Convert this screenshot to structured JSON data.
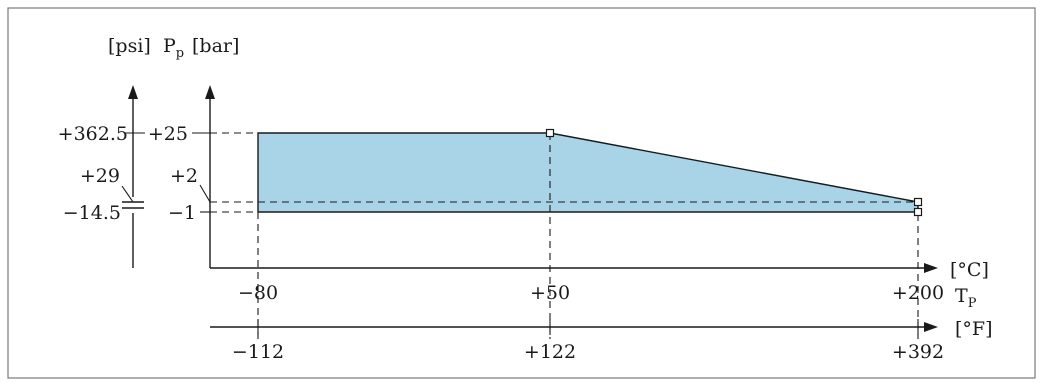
{
  "chart_data": {
    "type": "area",
    "title": "",
    "y_axes": {
      "bar": {
        "symbol": "P",
        "subscript": "p",
        "unit": "[bar]",
        "ticks": [
          "+25",
          "+2",
          "−1"
        ],
        "tick_values": [
          25,
          2,
          -1
        ]
      },
      "psi": {
        "unit": "[psi]",
        "ticks": [
          "+362.5",
          "+29",
          "−14.5"
        ],
        "tick_values": [
          362.5,
          29,
          -14.5
        ]
      }
    },
    "x_axes": {
      "celsius": {
        "symbol": "T",
        "subscript": "P",
        "unit": "[°C]",
        "ticks": [
          "−80",
          "+50",
          "+200"
        ],
        "tick_values": [
          -80,
          50,
          200
        ]
      },
      "fahrenheit": {
        "unit": "[°F]",
        "ticks": [
          "−112",
          "+122",
          "+392"
        ],
        "tick_values": [
          -112,
          122,
          392
        ]
      }
    },
    "upper_boundary": {
      "x": [
        -80,
        50,
        200
      ],
      "y": [
        25,
        25,
        2
      ]
    },
    "lower_boundary": {
      "x": [
        -80,
        200
      ],
      "y": [
        -1,
        -1
      ]
    },
    "colors": {
      "fill": "#a9d3e6",
      "line": "#1a1a1a",
      "frame": "#7a7a7a"
    }
  }
}
